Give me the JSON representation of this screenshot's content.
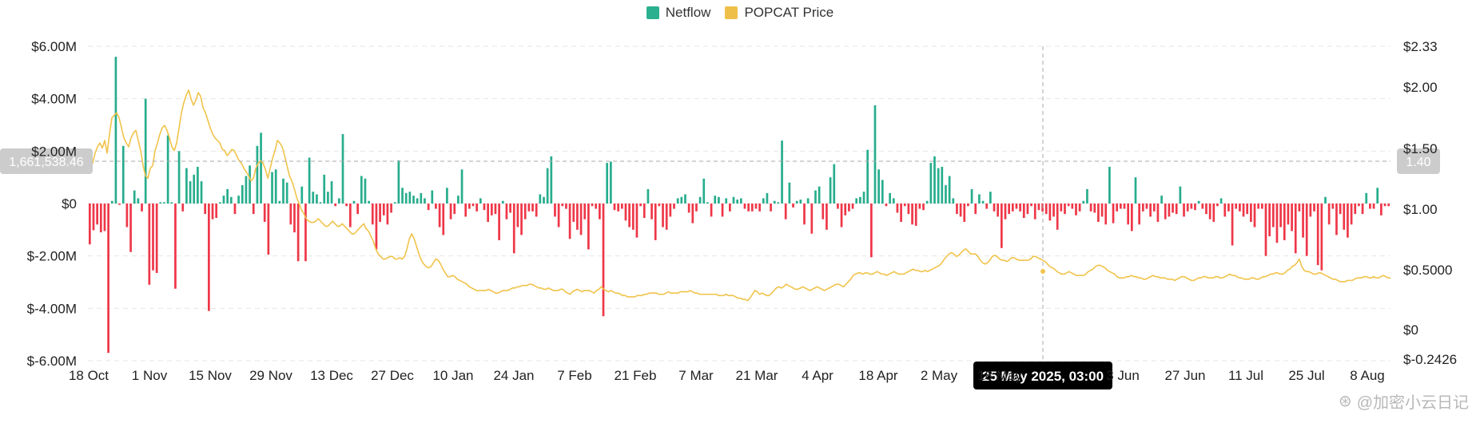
{
  "legend": {
    "netflow_label": "Netflow",
    "price_label": "POPCAT Price",
    "netflow_color": "#2bb08f",
    "price_color": "#efc049"
  },
  "colors": {
    "positive": "#27ad8d",
    "negative": "#ee3748",
    "price_line": "#f0c34a",
    "grid": "#e6e6e6",
    "marker_bg": "#cccccc",
    "tooltip_bg": "#000000"
  },
  "crosshair": {
    "left_value": "1,661,538.46",
    "right_value": "1.40",
    "date_label": "25 May 2025, 03:00"
  },
  "watermark": {
    "text": "@加密小云日记"
  },
  "chart_data": {
    "type": "bar",
    "left_axis": {
      "ticks": [
        "$6.00M",
        "$4.00M",
        "$2.00M",
        "$0",
        "$-2.00M",
        "$-4.00M",
        "$-6.00M"
      ],
      "tick_values": [
        6,
        4,
        2,
        0,
        -2,
        -4,
        -6
      ],
      "ylim": [
        -6,
        6
      ],
      "unit": "M"
    },
    "right_axis": {
      "ticks": [
        "$2.33",
        "$2.00",
        "$1.50",
        "$1.00",
        "$0.5000",
        "$0",
        "$-0.2426"
      ],
      "tick_values": [
        2.33,
        2.0,
        1.5,
        1.0,
        0.5,
        0,
        -0.2426
      ],
      "ylim": [
        -0.2426,
        2.33
      ]
    },
    "x_ticks": [
      "18 Oct",
      "1 Nov",
      "15 Nov",
      "29 Nov",
      "13 Dec",
      "27 Dec",
      "10 Jan",
      "24 Jan",
      "7 Feb",
      "21 Feb",
      "7 Mar",
      "21 Mar",
      "4 Apr",
      "18 Apr",
      "2 May",
      "18 May",
      "3 Jun",
      "27 Jun",
      "11 Jul",
      "25 Jul",
      "8 Aug"
    ],
    "x_start": "2024-10-18",
    "x_end": "2025-08-13",
    "netflow_values_M": [
      -1.56,
      -1.02,
      -0.8,
      -1.1,
      -1.05,
      -5.7,
      0.1,
      5.6,
      -0.05,
      2.2,
      -0.9,
      -1.85,
      0.5,
      0.2,
      -0.3,
      4.0,
      -3.1,
      -2.55,
      -2.65,
      0.05,
      0.05,
      2.6,
      0.05,
      -3.25,
      2.0,
      -0.3,
      1.35,
      0.85,
      1.1,
      1.4,
      0.85,
      -0.4,
      -4.1,
      -0.6,
      -0.55,
      0.05,
      0.3,
      0.55,
      0.25,
      -0.4,
      0.3,
      0.7,
      1.05,
      1.45,
      -0.4,
      2.2,
      2.7,
      -0.7,
      -1.95,
      1.2,
      1.3,
      0.1,
      0.95,
      0.8,
      -0.8,
      -1.1,
      -2.2,
      0.65,
      -2.2,
      1.75,
      0.45,
      0.35,
      0.05,
      1.1,
      0.45,
      0.85,
      -0.1,
      0.2,
      2.65,
      -0.1,
      -0.9,
      0.1,
      -0.4,
      1.05,
      0.95,
      0.1,
      -0.8,
      -1.75,
      -0.7,
      -0.45,
      -0.8,
      -0.35,
      0.05,
      1.65,
      0.6,
      0.4,
      0.45,
      0.3,
      0.2,
      0.4,
      0.2,
      -0.25,
      0.5,
      -0.2,
      -0.9,
      -1.2,
      0.6,
      -0.6,
      -0.4,
      0.3,
      1.3,
      -0.5,
      -0.2,
      -0.1,
      -0.3,
      0.2,
      -0.25,
      -0.7,
      -0.45,
      -0.4,
      -1.4,
      0.1,
      -0.6,
      -0.35,
      -1.9,
      -0.9,
      -1.2,
      -0.6,
      -0.3,
      -0.3,
      -0.5,
      0.35,
      0.25,
      1.35,
      1.8,
      -0.5,
      -0.9,
      -0.1,
      -0.2,
      -1.35,
      -0.7,
      -1.0,
      -1.2,
      -0.6,
      -1.75,
      -0.1,
      -0.2,
      -0.6,
      -4.3,
      1.55,
      1.6,
      -0.25,
      -0.3,
      -0.2,
      -0.65,
      -0.9,
      -1.0,
      -1.3,
      -0.1,
      -0.55,
      0.55,
      -0.6,
      -1.4,
      -0.1,
      -0.9,
      -1.0,
      -0.5,
      -0.2,
      0.2,
      0.25,
      0.35,
      -0.35,
      -0.75,
      -0.3,
      0.25,
      0.95,
      0.05,
      -0.5,
      0.3,
      0.25,
      -0.5,
      0.2,
      -0.3,
      0.25,
      0.15,
      0.2,
      -0.2,
      -0.3,
      -0.3,
      -0.2,
      -0.3,
      0.2,
      0.4,
      -0.3,
      0.1,
      0.05,
      2.4,
      -0.6,
      0.8,
      -0.15,
      0.1,
      0.15,
      -0.8,
      0.2,
      -1.15,
      0.5,
      0.65,
      -0.6,
      -1.0,
      1.0,
      1.5,
      -0.2,
      -0.9,
      -0.45,
      -0.3,
      -0.2,
      0.2,
      0.25,
      0.45,
      2.05,
      -2.05,
      3.75,
      1.3,
      0.9,
      -0.1,
      0.4,
      0.2,
      -0.35,
      -0.7,
      -0.1,
      -0.4,
      -0.8,
      -0.85,
      -0.2,
      -0.25,
      0.1,
      1.55,
      1.8,
      1.35,
      1.4,
      0.7,
      1.05,
      0.2,
      -0.4,
      -0.5,
      -0.7,
      -0.1,
      0.55,
      -0.4,
      0.35,
      0.1,
      -0.2,
      0.45,
      -0.3,
      -0.5,
      -1.7,
      -0.6,
      -0.4,
      -0.3,
      -0.2,
      -0.3,
      -0.55,
      -0.4,
      -0.1,
      -0.6,
      -0.25,
      -0.3,
      -0.4,
      -0.65,
      -0.5,
      -1.0,
      -0.3,
      -0.4,
      -0.1,
      -0.2,
      -0.45,
      -0.3,
      0.1,
      0.55,
      -0.3,
      -0.35,
      -0.7,
      -0.5,
      -0.8,
      1.4,
      -0.75,
      -0.3,
      -0.2,
      -0.2,
      -0.8,
      -1.05,
      1.0,
      -0.8,
      -0.3,
      -0.2,
      -0.5,
      -0.3,
      -0.7,
      0.3,
      -0.6,
      -0.5,
      -0.35,
      -0.4,
      0.65,
      -0.5,
      -0.3,
      -0.2,
      -0.25,
      0.1,
      -0.2,
      -0.4,
      -0.6,
      -0.7,
      -0.1,
      0.2,
      -0.5,
      -0.3,
      -1.6,
      -0.2,
      -0.3,
      -0.5,
      -0.4,
      -0.7,
      -0.9,
      -0.2,
      -0.2,
      -2.0,
      -1.25,
      -0.9,
      -1.5,
      -0.9,
      -1.4,
      -0.8,
      -1.05,
      -1.9,
      -0.3,
      -1.3,
      -2.0,
      -0.5,
      -0.3,
      -2.35,
      -2.55,
      0.25,
      -0.8,
      -0.2,
      -1.2,
      -0.4,
      -1.0,
      -1.3,
      -0.8,
      -0.4,
      -0.1,
      -0.4,
      0.4,
      -0.2,
      -0.2,
      0.6,
      -0.45,
      -0.1,
      -0.1
    ],
    "price_values": [
      1.38,
      1.35,
      1.32,
      1.4,
      1.45,
      1.48,
      1.44,
      1.5,
      1.4,
      1.55,
      1.68,
      1.7,
      1.72,
      1.68,
      1.6,
      1.52,
      1.48,
      1.45,
      1.52,
      1.56,
      1.58,
      1.5,
      1.42,
      1.3,
      1.22,
      1.2,
      1.28,
      1.3,
      1.42,
      1.48,
      1.55,
      1.6,
      1.62,
      1.58,
      1.52,
      1.45,
      1.42,
      1.48,
      1.6,
      1.72,
      1.8,
      1.86,
      1.9,
      1.83,
      1.78,
      1.82,
      1.88,
      1.85,
      1.76,
      1.72,
      1.66,
      1.6,
      1.55,
      1.52,
      1.5,
      1.48,
      1.43,
      1.42,
      1.38,
      1.4,
      1.43,
      1.42,
      1.38,
      1.34,
      1.32,
      1.28,
      1.25,
      1.22,
      1.18,
      1.2,
      1.28,
      1.32,
      1.34,
      1.32,
      1.27,
      1.2,
      1.28,
      1.36,
      1.42,
      1.5,
      1.48,
      1.45,
      1.38,
      1.3,
      1.22,
      1.18,
      1.12,
      1.05,
      1.0,
      0.95,
      0.92,
      0.88,
      0.86,
      0.85,
      0.85,
      0.86,
      0.88,
      0.86,
      0.84,
      0.82,
      0.82,
      0.84,
      0.86,
      0.84,
      0.82,
      0.82,
      0.84,
      0.82,
      0.8,
      0.78,
      0.76,
      0.76,
      0.78,
      0.8,
      0.82,
      0.84,
      0.8,
      0.78,
      0.74,
      0.7,
      0.64,
      0.6,
      0.58,
      0.56,
      0.56,
      0.57,
      0.58,
      0.58,
      0.56,
      0.56,
      0.57,
      0.56,
      0.58,
      0.64,
      0.72,
      0.76,
      0.72,
      0.66,
      0.6,
      0.55,
      0.52,
      0.5,
      0.49,
      0.5,
      0.53,
      0.56,
      0.55,
      0.52,
      0.48,
      0.45,
      0.42,
      0.42,
      0.43,
      0.42,
      0.4,
      0.39,
      0.38,
      0.37,
      0.36,
      0.34,
      0.33,
      0.32,
      0.31,
      0.31,
      0.31,
      0.31,
      0.31,
      0.32,
      0.31,
      0.3,
      0.29,
      0.29,
      0.3,
      0.31,
      0.31,
      0.31,
      0.32,
      0.33,
      0.33,
      0.34,
      0.34,
      0.35,
      0.35,
      0.35,
      0.36,
      0.36,
      0.35,
      0.34,
      0.33,
      0.33,
      0.32,
      0.32,
      0.33,
      0.32,
      0.31,
      0.31,
      0.31,
      0.32,
      0.32,
      0.3,
      0.29,
      0.28,
      0.3,
      0.31,
      0.32,
      0.31,
      0.3,
      0.31,
      0.31,
      0.31,
      0.3,
      0.29,
      0.31,
      0.32,
      0.34,
      0.32,
      0.31,
      0.3,
      0.31,
      0.3,
      0.29,
      0.29,
      0.28,
      0.27,
      0.27,
      0.26,
      0.26,
      0.26,
      0.26,
      0.27,
      0.27,
      0.27,
      0.28,
      0.28,
      0.29,
      0.29,
      0.29,
      0.29,
      0.28,
      0.28,
      0.28,
      0.29,
      0.3,
      0.29,
      0.29,
      0.29,
      0.29,
      0.3,
      0.3,
      0.3,
      0.3,
      0.31,
      0.3,
      0.29,
      0.29,
      0.28,
      0.28,
      0.28,
      0.28,
      0.28,
      0.28,
      0.28,
      0.28,
      0.27,
      0.27,
      0.27,
      0.28,
      0.27,
      0.27,
      0.27,
      0.26,
      0.25,
      0.25,
      0.24,
      0.24,
      0.23,
      0.25,
      0.28,
      0.31,
      0.3,
      0.28,
      0.29,
      0.28,
      0.27,
      0.27,
      0.29,
      0.31,
      0.33,
      0.34,
      0.33,
      0.34,
      0.36,
      0.35,
      0.34,
      0.33,
      0.32,
      0.32,
      0.33,
      0.34,
      0.33,
      0.32,
      0.31,
      0.32,
      0.33,
      0.34,
      0.33,
      0.32,
      0.31,
      0.32,
      0.33,
      0.34,
      0.35,
      0.36,
      0.36,
      0.35,
      0.34,
      0.36,
      0.38,
      0.4,
      0.43,
      0.44,
      0.45,
      0.45,
      0.44,
      0.45,
      0.45,
      0.44,
      0.44,
      0.45,
      0.46,
      0.45,
      0.44,
      0.44,
      0.43,
      0.44,
      0.45,
      0.46,
      0.45,
      0.44,
      0.44,
      0.44,
      0.45,
      0.46,
      0.47,
      0.48,
      0.47,
      0.47,
      0.46,
      0.46,
      0.47,
      0.46,
      0.47,
      0.48,
      0.49,
      0.5,
      0.51,
      0.53,
      0.56,
      0.58,
      0.6,
      0.61,
      0.6,
      0.58,
      0.59,
      0.61,
      0.63,
      0.64,
      0.62,
      0.6,
      0.6,
      0.6,
      0.58,
      0.55,
      0.53,
      0.52,
      0.53,
      0.55,
      0.58,
      0.59,
      0.58,
      0.56,
      0.55,
      0.55,
      0.54,
      0.55,
      0.57,
      0.57,
      0.56,
      0.55,
      0.55,
      0.55,
      0.55,
      0.55,
      0.56,
      0.58,
      0.58,
      0.57,
      0.56,
      0.55,
      0.54,
      0.52,
      0.5,
      0.49,
      0.48,
      0.46,
      0.45,
      0.44,
      0.44,
      0.45,
      0.46,
      0.45,
      0.44,
      0.43,
      0.43,
      0.43,
      0.43,
      0.44,
      0.46,
      0.47,
      0.48,
      0.5,
      0.51,
      0.51,
      0.5,
      0.49,
      0.47,
      0.46,
      0.45,
      0.44,
      0.42,
      0.41,
      0.41,
      0.41,
      0.42,
      0.42,
      0.43,
      0.42,
      0.42,
      0.41,
      0.41,
      0.4,
      0.4,
      0.41,
      0.42,
      0.43,
      0.42,
      0.42,
      0.41,
      0.41,
      0.41,
      0.4,
      0.4,
      0.4,
      0.39,
      0.4,
      0.41,
      0.42,
      0.42,
      0.41,
      0.4,
      0.39,
      0.39,
      0.4,
      0.41,
      0.41,
      0.42,
      0.42,
      0.41,
      0.41,
      0.41,
      0.42,
      0.42,
      0.41,
      0.41,
      0.42,
      0.43,
      0.44,
      0.43,
      0.43,
      0.42,
      0.41,
      0.41,
      0.4,
      0.4,
      0.4,
      0.41,
      0.41,
      0.4,
      0.4,
      0.41,
      0.42,
      0.42,
      0.43,
      0.44,
      0.44,
      0.45,
      0.45,
      0.44,
      0.44,
      0.45,
      0.47,
      0.48,
      0.5,
      0.51,
      0.53,
      0.56,
      0.5,
      0.47,
      0.46,
      0.46,
      0.45,
      0.44,
      0.44,
      0.45,
      0.45,
      0.44,
      0.43,
      0.42,
      0.41,
      0.4,
      0.4,
      0.39,
      0.38,
      0.38,
      0.38,
      0.39,
      0.39,
      0.39,
      0.4,
      0.41,
      0.41,
      0.41,
      0.42,
      0.42,
      0.41,
      0.41,
      0.42,
      0.41,
      0.41,
      0.42,
      0.43,
      0.42,
      0.41,
      0.41
    ]
  }
}
